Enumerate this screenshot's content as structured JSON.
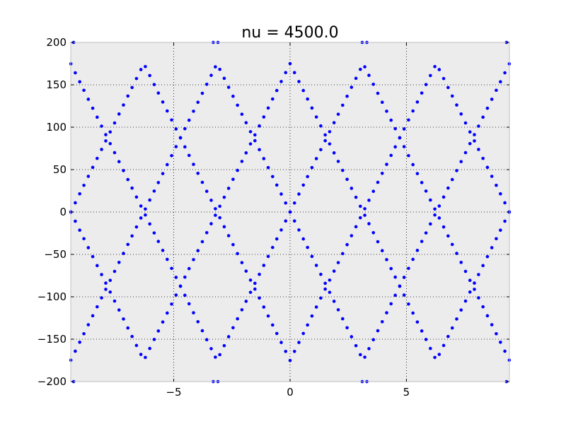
{
  "chart_data": {
    "type": "scatter",
    "title": "nu = 4500.0",
    "xlabel": "",
    "ylabel": "",
    "xlim": [
      -9.4248,
      9.4248
    ],
    "ylim": [
      -200,
      200
    ],
    "x_ticks": [
      -5,
      0,
      5
    ],
    "x_tick_labels": [
      "−5",
      "0",
      "5"
    ],
    "y_ticks": [
      200,
      150,
      100,
      50,
      0,
      -50,
      -100,
      -150,
      -200
    ],
    "y_tick_labels": [
      "200",
      "150",
      "100",
      "50",
      "0",
      "−50",
      "−100",
      "−150",
      "−200"
    ],
    "grid": true,
    "grid_style": "dotted",
    "marker_color": "#0000ff",
    "axes_background": "#ececec",
    "series": [
      {
        "description_points": "Band of eigenvalues: y = ±175·|cos(x/2)| style folded lines; sampled at uniform x",
        "x": [
          -9.42,
          -9.23,
          -9.04,
          -8.86,
          -8.67,
          -8.48,
          -8.29,
          -8.1,
          -7.92,
          -7.73,
          -7.54,
          -7.35,
          -7.16,
          -6.97,
          -6.79,
          -6.6,
          -6.41,
          -6.22,
          -6.03,
          -5.84,
          -5.66,
          -5.47,
          -5.28,
          -5.09,
          -4.9,
          -4.71,
          -4.52,
          -4.34,
          -4.15,
          -3.96,
          -3.77,
          -3.58,
          -3.39,
          -3.21,
          -3.02,
          -2.83,
          -2.64,
          -2.45,
          -2.26,
          -2.07,
          -1.89,
          -1.7,
          -1.51,
          -1.32,
          -1.13,
          -0.94,
          -0.75,
          -0.57,
          -0.38,
          -0.19,
          0.0,
          0.19,
          0.38,
          0.57,
          0.75,
          0.94,
          1.13,
          1.32,
          1.51,
          1.7,
          1.89,
          2.07,
          2.26,
          2.45,
          2.64,
          2.83,
          3.02,
          3.21,
          3.39,
          3.58,
          3.77,
          3.96,
          4.15,
          4.34,
          4.52,
          4.71,
          4.9,
          5.09,
          5.28,
          5.47,
          5.66,
          5.84,
          6.03,
          6.22,
          6.41,
          6.6,
          6.79,
          6.97,
          7.16,
          7.35,
          7.54,
          7.73,
          7.92,
          8.1,
          8.29,
          8.48,
          8.67,
          8.86,
          9.04,
          9.23,
          9.42
        ]
      }
    ]
  }
}
